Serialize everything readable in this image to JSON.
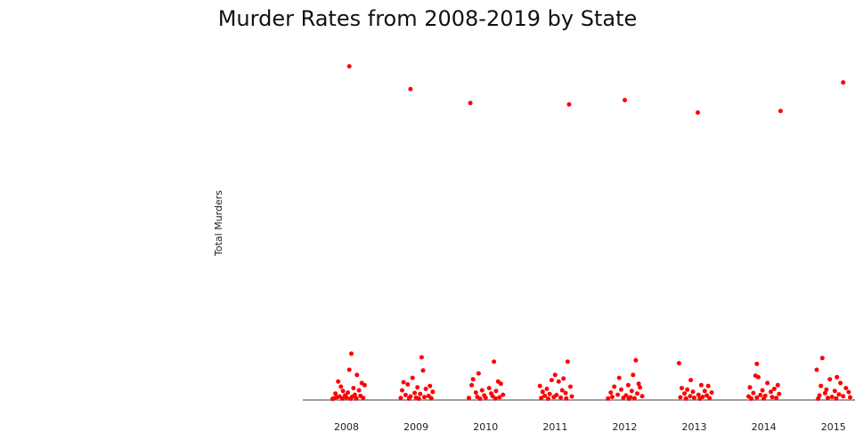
{
  "chart_data": {
    "type": "scatter",
    "title": "Murder Rates from 2008-2019 by State",
    "xlabel": "",
    "ylabel": "Total Murders",
    "categories": [
      "2008",
      "2009",
      "2010",
      "2011",
      "2012",
      "2013",
      "2014",
      "2015"
    ],
    "ylim": [
      0,
      2280
    ],
    "grid": false,
    "point_color": "#ff0000",
    "baseline_color": "#808080",
    "series": [
      {
        "values": [
          [
            {
              "jitter": 0.04,
              "y": 2270
            },
            {
              "jitter": 0.07,
              "y": 310
            },
            {
              "jitter": 0.04,
              "y": 200
            },
            {
              "jitter": 0.15,
              "y": 165
            },
            {
              "jitter": -0.12,
              "y": 120
            },
            {
              "jitter": -0.08,
              "y": 85
            },
            {
              "jitter": 0.1,
              "y": 75
            },
            {
              "jitter": 0.22,
              "y": 110
            },
            {
              "jitter": 0.18,
              "y": 60
            },
            {
              "jitter": -0.05,
              "y": 55
            },
            {
              "jitter": 0.02,
              "y": 45
            },
            {
              "jitter": -0.16,
              "y": 38
            },
            {
              "jitter": 0.26,
              "y": 95
            },
            {
              "jitter": 0.12,
              "y": 30
            },
            {
              "jitter": -0.02,
              "y": 25
            },
            {
              "jitter": 0.2,
              "y": 22
            },
            {
              "jitter": -0.1,
              "y": 18
            },
            {
              "jitter": 0.08,
              "y": 15
            },
            {
              "jitter": -0.14,
              "y": 12
            },
            {
              "jitter": 0.0,
              "y": 10
            },
            {
              "jitter": 0.24,
              "y": 8
            },
            {
              "jitter": -0.18,
              "y": 6
            },
            {
              "jitter": 0.14,
              "y": 5
            },
            {
              "jitter": -0.06,
              "y": 4
            },
            {
              "jitter": 0.06,
              "y": 3
            },
            {
              "jitter": -0.2,
              "y": 2
            }
          ],
          [
            {
              "jitter": -0.08,
              "y": 2115
            },
            {
              "jitter": 0.08,
              "y": 285
            },
            {
              "jitter": 0.1,
              "y": 195
            },
            {
              "jitter": -0.05,
              "y": 145
            },
            {
              "jitter": -0.18,
              "y": 115
            },
            {
              "jitter": -0.12,
              "y": 100
            },
            {
              "jitter": 0.2,
              "y": 90
            },
            {
              "jitter": 0.02,
              "y": 80
            },
            {
              "jitter": 0.14,
              "y": 70
            },
            {
              "jitter": -0.2,
              "y": 60
            },
            {
              "jitter": 0.24,
              "y": 50
            },
            {
              "jitter": -0.02,
              "y": 42
            },
            {
              "jitter": 0.06,
              "y": 35
            },
            {
              "jitter": -0.15,
              "y": 28
            },
            {
              "jitter": 0.18,
              "y": 22
            },
            {
              "jitter": -0.08,
              "y": 18
            },
            {
              "jitter": 0.12,
              "y": 14
            },
            {
              "jitter": 0.0,
              "y": 10
            },
            {
              "jitter": -0.22,
              "y": 8
            },
            {
              "jitter": 0.22,
              "y": 6
            },
            {
              "jitter": -0.1,
              "y": 4
            },
            {
              "jitter": 0.04,
              "y": 3
            }
          ],
          [
            {
              "jitter": -0.22,
              "y": 2020
            },
            {
              "jitter": 0.12,
              "y": 255
            },
            {
              "jitter": -0.1,
              "y": 175
            },
            {
              "jitter": -0.18,
              "y": 135
            },
            {
              "jitter": 0.18,
              "y": 120
            },
            {
              "jitter": -0.2,
              "y": 95
            },
            {
              "jitter": 0.22,
              "y": 105
            },
            {
              "jitter": 0.05,
              "y": 75
            },
            {
              "jitter": -0.05,
              "y": 60
            },
            {
              "jitter": 0.15,
              "y": 55
            },
            {
              "jitter": -0.14,
              "y": 45
            },
            {
              "jitter": 0.08,
              "y": 38
            },
            {
              "jitter": 0.25,
              "y": 30
            },
            {
              "jitter": -0.02,
              "y": 25
            },
            {
              "jitter": 0.1,
              "y": 20
            },
            {
              "jitter": -0.12,
              "y": 15
            },
            {
              "jitter": 0.2,
              "y": 12
            },
            {
              "jitter": 0.0,
              "y": 9
            },
            {
              "jitter": -0.24,
              "y": 7
            },
            {
              "jitter": 0.14,
              "y": 5
            },
            {
              "jitter": -0.08,
              "y": 3
            }
          ],
          [
            {
              "jitter": 0.2,
              "y": 2010
            },
            {
              "jitter": 0.18,
              "y": 255
            },
            {
              "jitter": 0.0,
              "y": 165
            },
            {
              "jitter": 0.12,
              "y": 140
            },
            {
              "jitter": -0.05,
              "y": 130
            },
            {
              "jitter": -0.22,
              "y": 90
            },
            {
              "jitter": 0.05,
              "y": 120
            },
            {
              "jitter": 0.22,
              "y": 85
            },
            {
              "jitter": -0.12,
              "y": 70
            },
            {
              "jitter": 0.1,
              "y": 60
            },
            {
              "jitter": -0.18,
              "y": 50
            },
            {
              "jitter": 0.15,
              "y": 42
            },
            {
              "jitter": -0.08,
              "y": 35
            },
            {
              "jitter": 0.02,
              "y": 28
            },
            {
              "jitter": -0.15,
              "y": 22
            },
            {
              "jitter": 0.24,
              "y": 18
            },
            {
              "jitter": -0.02,
              "y": 14
            },
            {
              "jitter": 0.08,
              "y": 10
            },
            {
              "jitter": -0.2,
              "y": 7
            },
            {
              "jitter": 0.16,
              "y": 5
            },
            {
              "jitter": -0.1,
              "y": 3
            }
          ],
          [
            {
              "jitter": 0.0,
              "y": 2040
            },
            {
              "jitter": 0.16,
              "y": 265
            },
            {
              "jitter": 0.12,
              "y": 165
            },
            {
              "jitter": -0.08,
              "y": 145
            },
            {
              "jitter": 0.2,
              "y": 105
            },
            {
              "jitter": -0.15,
              "y": 85
            },
            {
              "jitter": 0.05,
              "y": 95
            },
            {
              "jitter": 0.22,
              "y": 80
            },
            {
              "jitter": -0.05,
              "y": 65
            },
            {
              "jitter": 0.1,
              "y": 55
            },
            {
              "jitter": -0.2,
              "y": 45
            },
            {
              "jitter": 0.18,
              "y": 38
            },
            {
              "jitter": -0.1,
              "y": 30
            },
            {
              "jitter": 0.02,
              "y": 25
            },
            {
              "jitter": 0.25,
              "y": 20
            },
            {
              "jitter": -0.18,
              "y": 15
            },
            {
              "jitter": 0.08,
              "y": 12
            },
            {
              "jitter": -0.02,
              "y": 9
            },
            {
              "jitter": 0.14,
              "y": 6
            },
            {
              "jitter": -0.24,
              "y": 4
            },
            {
              "jitter": 0.06,
              "y": 3
            }
          ],
          [
            {
              "jitter": 0.05,
              "y": 1955
            },
            {
              "jitter": -0.22,
              "y": 245
            },
            {
              "jitter": -0.05,
              "y": 130
            },
            {
              "jitter": 0.2,
              "y": 90
            },
            {
              "jitter": -0.18,
              "y": 75
            },
            {
              "jitter": 0.1,
              "y": 95
            },
            {
              "jitter": -0.1,
              "y": 65
            },
            {
              "jitter": 0.15,
              "y": 55
            },
            {
              "jitter": -0.02,
              "y": 50
            },
            {
              "jitter": 0.25,
              "y": 45
            },
            {
              "jitter": -0.14,
              "y": 38
            },
            {
              "jitter": 0.06,
              "y": 30
            },
            {
              "jitter": 0.18,
              "y": 25
            },
            {
              "jitter": -0.06,
              "y": 20
            },
            {
              "jitter": 0.12,
              "y": 15
            },
            {
              "jitter": -0.2,
              "y": 12
            },
            {
              "jitter": 0.0,
              "y": 9
            },
            {
              "jitter": 0.22,
              "y": 6
            },
            {
              "jitter": -0.12,
              "y": 4
            },
            {
              "jitter": 0.08,
              "y": 3
            }
          ],
          [
            {
              "jitter": 0.24,
              "y": 1965
            },
            {
              "jitter": -0.1,
              "y": 240
            },
            {
              "jitter": -0.12,
              "y": 160
            },
            {
              "jitter": -0.08,
              "y": 150
            },
            {
              "jitter": 0.2,
              "y": 95
            },
            {
              "jitter": -0.2,
              "y": 80
            },
            {
              "jitter": 0.05,
              "y": 110
            },
            {
              "jitter": 0.15,
              "y": 70
            },
            {
              "jitter": -0.02,
              "y": 60
            },
            {
              "jitter": 0.1,
              "y": 50
            },
            {
              "jitter": -0.15,
              "y": 42
            },
            {
              "jitter": 0.22,
              "y": 35
            },
            {
              "jitter": -0.05,
              "y": 28
            },
            {
              "jitter": 0.02,
              "y": 22
            },
            {
              "jitter": -0.22,
              "y": 18
            },
            {
              "jitter": 0.12,
              "y": 14
            },
            {
              "jitter": -0.1,
              "y": 10
            },
            {
              "jitter": 0.18,
              "y": 7
            },
            {
              "jitter": 0.0,
              "y": 5
            },
            {
              "jitter": -0.18,
              "y": 3
            }
          ],
          [
            {
              "jitter": 0.14,
              "y": 2160
            },
            {
              "jitter": -0.16,
              "y": 280
            },
            {
              "jitter": -0.24,
              "y": 200
            },
            {
              "jitter": 0.05,
              "y": 150
            },
            {
              "jitter": -0.05,
              "y": 135
            },
            {
              "jitter": 0.1,
              "y": 110
            },
            {
              "jitter": -0.18,
              "y": 90
            },
            {
              "jitter": 0.18,
              "y": 75
            },
            {
              "jitter": -0.1,
              "y": 65
            },
            {
              "jitter": 0.02,
              "y": 55
            },
            {
              "jitter": 0.22,
              "y": 48
            },
            {
              "jitter": -0.12,
              "y": 40
            },
            {
              "jitter": 0.08,
              "y": 32
            },
            {
              "jitter": -0.2,
              "y": 25
            },
            {
              "jitter": 0.14,
              "y": 20
            },
            {
              "jitter": -0.02,
              "y": 15
            },
            {
              "jitter": 0.24,
              "y": 12
            },
            {
              "jitter": -0.08,
              "y": 8
            },
            {
              "jitter": 0.04,
              "y": 5
            },
            {
              "jitter": -0.22,
              "y": 3
            }
          ]
        ]
      }
    ]
  }
}
